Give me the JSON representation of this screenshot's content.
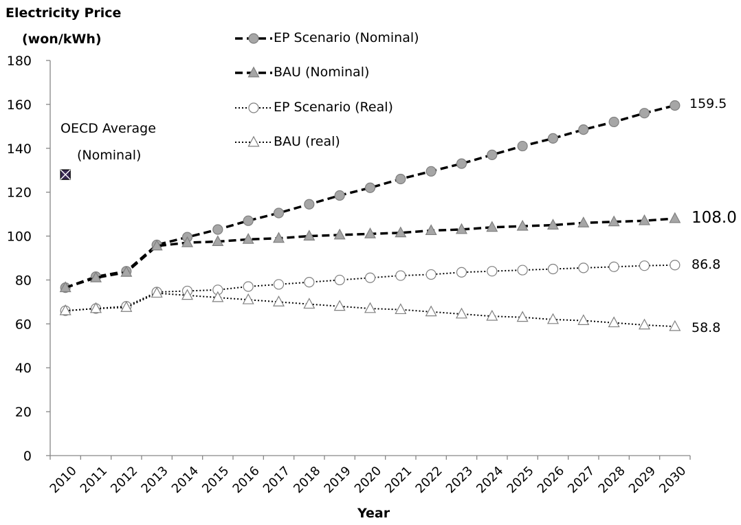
{
  "chart_data": {
    "type": "line",
    "ylabel_lines": [
      "Electricity Price",
      "(won/kWh)"
    ],
    "xlabel": "Year",
    "ylim": [
      0,
      180
    ],
    "yticks": [
      0,
      20,
      40,
      60,
      80,
      100,
      120,
      140,
      160,
      180
    ],
    "categories": [
      "2010",
      "2011",
      "2012",
      "2013",
      "2014",
      "2015",
      "2016",
      "2017",
      "2018",
      "2019",
      "2020",
      "2021",
      "2022",
      "2023",
      "2024",
      "2025",
      "2026",
      "2027",
      "2028",
      "2029",
      "2030"
    ],
    "series": [
      {
        "name": "EP Scenario (Nominal)",
        "style": "dashed",
        "marker": "circle-filled",
        "color": "#000000",
        "marker_color": "#a6a6a6",
        "values": [
          76.5,
          81.5,
          84,
          96,
          99.5,
          103,
          107,
          110.5,
          114.5,
          118.5,
          122,
          126,
          129.5,
          133,
          137,
          141,
          144.5,
          148.5,
          152,
          156,
          159.5
        ],
        "end_label": "159.5"
      },
      {
        "name": "BAU (Nominal)",
        "style": "dashed",
        "marker": "triangle-filled",
        "color": "#000000",
        "marker_color": "#a6a6a6",
        "values": [
          76.5,
          81,
          83.5,
          95.5,
          97,
          97.5,
          98.5,
          99,
          100,
          100.5,
          101,
          101.5,
          102.5,
          103,
          104,
          104.5,
          105,
          106,
          106.5,
          107,
          108
        ],
        "end_label": "108.0"
      },
      {
        "name": "EP Scenario (Real)",
        "style": "dotted",
        "marker": "circle-open",
        "color": "#000000",
        "marker_color": "#ffffff",
        "values": [
          66,
          67,
          68,
          74.5,
          75,
          75.5,
          77,
          78,
          79,
          80,
          81,
          82,
          82.5,
          83.5,
          84,
          84.5,
          85,
          85.5,
          86,
          86.5,
          86.8
        ],
        "end_label": "86.8"
      },
      {
        "name": "BAU (real)",
        "style": "dotted",
        "marker": "triangle-open",
        "color": "#000000",
        "marker_color": "#ffffff",
        "values": [
          66,
          67,
          67.5,
          74,
          73,
          72,
          71,
          70,
          69,
          68,
          67,
          66.5,
          65.5,
          64.5,
          63.5,
          63,
          62,
          61.5,
          60.5,
          59.5,
          58.8
        ],
        "end_label": "58.8"
      }
    ],
    "annotation": {
      "lines": [
        "OECD Average",
        "(Nominal)"
      ],
      "x": "2010",
      "value": 128,
      "marker": "square-x",
      "marker_color": "#3b2a55"
    },
    "legend_position": "top-center",
    "grid": false
  }
}
